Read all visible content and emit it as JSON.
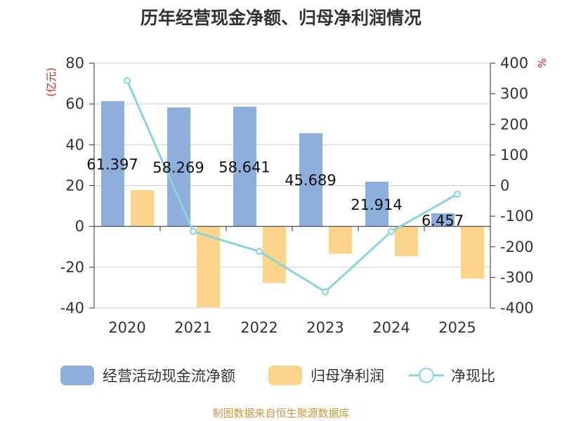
{
  "title": "历年经营现金净额、归母净利润情况",
  "source": "制图数据来自恒生聚源数据库",
  "colors": {
    "cash_flow": "#8eaedb",
    "net_profit": "#fdd48c",
    "ratio": "#88d4d8",
    "unit": "#e02020",
    "grid": "#d0d0d0",
    "axis": "#333333",
    "source": "#c89a3e"
  },
  "chart_data": {
    "type": "bar",
    "categories": [
      "2020",
      "2021",
      "2022",
      "2023",
      "2024",
      "2025"
    ],
    "series": [
      {
        "name": "经营活动现金流净额",
        "type": "bar",
        "axis": "left",
        "values": [
          61.397,
          58.269,
          58.641,
          45.689,
          21.914,
          6.457
        ],
        "labels": [
          "61.397",
          "58.269",
          "58.641",
          "45.689",
          "21.914",
          "6.457"
        ]
      },
      {
        "name": "归母净利润",
        "type": "bar",
        "axis": "left",
        "values": [
          17.8,
          -39.6,
          -27.8,
          -13.4,
          -14.6,
          -25.6
        ]
      },
      {
        "name": "净现比",
        "type": "line",
        "axis": "right",
        "values": [
          343,
          -150,
          -215,
          -347,
          -150,
          -28
        ]
      }
    ],
    "left_axis": {
      "label": "(亿元)",
      "min": -40,
      "max": 80,
      "ticks": [
        "-40",
        "-20",
        "0",
        "20",
        "40",
        "60",
        "80"
      ]
    },
    "right_axis": {
      "label": "%",
      "min": -400,
      "max": 400,
      "ticks": [
        "-400",
        "-300",
        "-200",
        "-100",
        "0",
        "100",
        "200",
        "300",
        "400"
      ]
    },
    "legend_position": "bottom"
  }
}
